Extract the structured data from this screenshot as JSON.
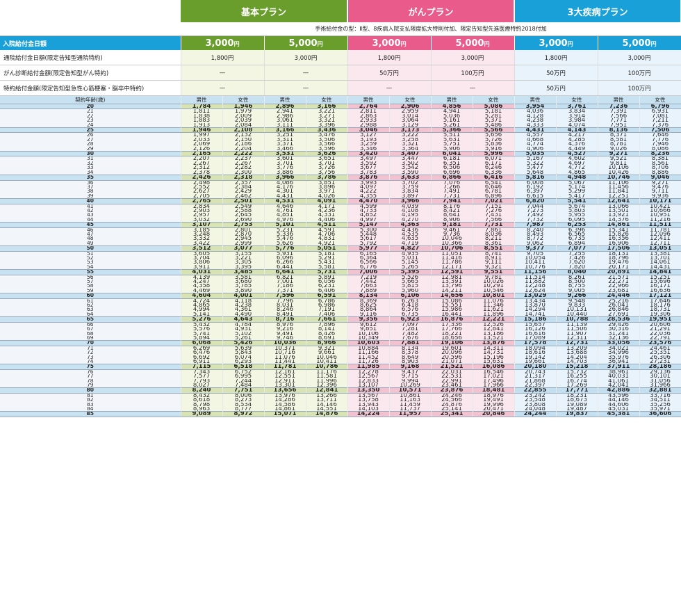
{
  "plans": [
    {
      "name": "基本プラン",
      "color": "#6a9e2c"
    },
    {
      "name": "がんプラン",
      "color": "#e85b8a"
    },
    {
      "name": "3大疾病プラン",
      "color": "#1aa0d8"
    }
  ],
  "note": "手術給付金の型：Ⅱ型、8疾病入院支払限度拡大特則付加、限定告知型先進医療特約2018付加",
  "rows": {
    "hospital_label": "入院給付金日額",
    "hospital_values": [
      "3,000",
      "5,000",
      "3,000",
      "5,000",
      "3,000",
      "5,000"
    ],
    "yen": "円",
    "outpatient_label": "通院給付金日額(限定告知型通院特約)",
    "outpatient_values": [
      "1,800円",
      "3,000円",
      "1,800円",
      "3,000円",
      "1,800円",
      "3,000円"
    ],
    "cancer_label": "がん診断給付金額(限定告知型がん特約)",
    "cancer_values": [
      "—",
      "—",
      "50万円",
      "100万円",
      "50万円",
      "100万円"
    ],
    "special_label": "特約給付金額(限定告知型急性心筋梗塞・脳卒中特約)",
    "special_values": [
      "—",
      "—",
      "—",
      "—",
      "50万円",
      "100万円"
    ]
  },
  "table": {
    "age_header": "契約年齢(歳)",
    "male": "男性",
    "female": "女性",
    "rows": [
      [
        "20",
        "1,784",
        "1,946",
        "2,896",
        "3,166",
        "2,764",
        "2,906",
        "4,856",
        "5,086",
        "3,954",
        "3,761",
        "7,236",
        "6,796"
      ],
      [
        "21",
        "1,811",
        "1,979",
        "2,941",
        "3,221",
        "2,811",
        "2,959",
        "4,941",
        "5,181",
        "4,036",
        "3,834",
        "7,391",
        "6,931"
      ],
      [
        "22",
        "1,838",
        "2,009",
        "2,986",
        "3,271",
        "2,863",
        "3,014",
        "5,036",
        "5,281",
        "4,128",
        "3,914",
        "7,566",
        "7,081"
      ],
      [
        "23",
        "1,883",
        "2,039",
        "3,061",
        "3,321",
        "2,933",
        "3,064",
        "5,161",
        "5,371",
        "4,238",
        "3,984",
        "7,771",
        "7,211"
      ],
      [
        "24",
        "1,913",
        "2,084",
        "3,111",
        "3,396",
        "2,988",
        "3,129",
        "5,261",
        "5,486",
        "4,333",
        "4,074",
        "7,951",
        "7,376"
      ],
      [
        "25",
        "1,946",
        "2,108",
        "3,166",
        "3,436",
        "3,046",
        "3,173",
        "5,366",
        "5,566",
        "4,431",
        "4,143",
        "8,136",
        "7,506"
      ],
      [
        "26",
        "1,997",
        "2,132",
        "3,251",
        "3,476",
        "3,127",
        "3,222",
        "5,511",
        "5,656",
        "4,557",
        "4,217",
        "8,371",
        "7,646"
      ],
      [
        "27",
        "2,033",
        "2,150",
        "3,311",
        "3,506",
        "3,193",
        "3,258",
        "5,631",
        "5,726",
        "4,668",
        "4,285",
        "8,581",
        "7,776"
      ],
      [
        "28",
        "2,069",
        "2,186",
        "3,371",
        "3,566",
        "3,259",
        "3,321",
        "5,751",
        "5,836",
        "4,774",
        "4,376",
        "8,781",
        "7,946"
      ],
      [
        "29",
        "2,126",
        "2,204",
        "3,466",
        "3,596",
        "3,346",
        "3,364",
        "5,906",
        "5,916",
        "4,906",
        "4,449",
        "9,026",
        "8,086"
      ],
      [
        "30",
        "2,165",
        "2,222",
        "3,531",
        "3,626",
        "3,420",
        "3,407",
        "6,041",
        "5,996",
        "5,035",
        "4,527",
        "9,271",
        "8,236"
      ],
      [
        "31",
        "2,207",
        "2,237",
        "3,601",
        "3,651",
        "3,497",
        "3,447",
        "6,181",
        "6,071",
        "5,167",
        "4,602",
        "9,521",
        "8,381"
      ],
      [
        "32",
        "2,267",
        "2,267",
        "3,701",
        "3,701",
        "3,592",
        "3,502",
        "6,351",
        "6,171",
        "5,322",
        "4,697",
        "9,811",
        "8,561"
      ],
      [
        "33",
        "2,312",
        "2,282",
        "3,776",
        "3,726",
        "3,677",
        "3,542",
        "6,506",
        "6,246",
        "5,477",
        "4,772",
        "10,106",
        "8,706"
      ],
      [
        "34",
        "2,378",
        "2,300",
        "3,886",
        "3,756",
        "3,783",
        "3,590",
        "6,696",
        "6,336",
        "5,648",
        "4,865",
        "10,426",
        "8,886"
      ],
      [
        "35",
        "2,426",
        "2,318",
        "3,966",
        "3,786",
        "3,876",
        "3,633",
        "6,866",
        "6,416",
        "5,816",
        "4,948",
        "10,746",
        "9,046"
      ],
      [
        "36",
        "2,498",
        "2,357",
        "4,086",
        "3,851",
        "3,993",
        "3,702",
        "7,076",
        "6,541",
        "6,008",
        "5,067",
        "11,106",
        "9,271"
      ],
      [
        "37",
        "2,552",
        "2,384",
        "4,176",
        "3,896",
        "4,097",
        "3,759",
        "7,266",
        "6,646",
        "6,192",
        "5,174",
        "11,456",
        "9,476"
      ],
      [
        "38",
        "2,627",
        "2,429",
        "4,301",
        "3,971",
        "4,222",
        "3,834",
        "7,491",
        "6,781",
        "6,397",
        "5,299",
        "11,841",
        "9,711"
      ],
      [
        "39",
        "2,705",
        "2,462",
        "4,431",
        "4,026",
        "4,355",
        "3,897",
        "7,731",
        "6,896",
        "6,615",
        "5,417",
        "12,251",
        "9,936"
      ],
      [
        "40",
        "2,765",
        "2,501",
        "4,531",
        "4,091",
        "4,470",
        "3,966",
        "7,941",
        "7,021",
        "6,820",
        "5,541",
        "12,641",
        "10,171"
      ],
      [
        "41",
        "2,834",
        "2,549",
        "4,646",
        "4,171",
        "4,599",
        "4,039",
        "8,176",
        "7,151",
        "7,044",
        "5,674",
        "13,066",
        "10,421"
      ],
      [
        "42",
        "2,903",
        "2,588",
        "4,761",
        "4,236",
        "4,733",
        "4,108",
        "8,421",
        "7,276",
        "7,273",
        "5,803",
        "13,501",
        "10,666"
      ],
      [
        "43",
        "2,957",
        "2,645",
        "4,851",
        "4,331",
        "4,852",
        "4,195",
        "8,641",
        "7,431",
        "7,492",
        "5,955",
        "13,921",
        "10,951"
      ],
      [
        "44",
        "3,032",
        "2,690",
        "4,976",
        "4,406",
        "4,997",
        "4,270",
        "8,906",
        "7,566",
        "7,732",
        "6,095",
        "14,376",
        "11,216"
      ],
      [
        "45",
        "3,107",
        "2,753",
        "5,101",
        "4,511",
        "5,147",
        "4,363",
        "9,181",
        "7,731",
        "7,987",
        "6,253",
        "14,861",
        "11,511"
      ],
      [
        "46",
        "3,185",
        "2,801",
        "5,231",
        "4,591",
        "5,300",
        "4,436",
        "9,461",
        "7,861",
        "8,240",
        "6,396",
        "15,341",
        "11,781"
      ],
      [
        "47",
        "3,248",
        "2,870",
        "5,336",
        "4,706",
        "5,448",
        "4,535",
        "9,736",
        "8,036",
        "8,493",
        "6,565",
        "15,826",
        "12,096"
      ],
      [
        "48",
        "3,332",
        "2,945",
        "5,476",
        "4,831",
        "5,617",
        "4,635",
        "10,046",
        "8,211",
        "8,772",
        "6,735",
        "16,356",
        "12,411"
      ],
      [
        "49",
        "3,422",
        "2,999",
        "5,626",
        "4,921",
        "5,792",
        "4,719",
        "10,366",
        "8,361",
        "9,062",
        "6,894",
        "16,906",
        "12,711"
      ],
      [
        "50",
        "3,512",
        "3,077",
        "5,776",
        "5,051",
        "5,977",
        "4,827",
        "10,706",
        "8,551",
        "9,377",
        "7,077",
        "17,506",
        "13,051"
      ],
      [
        "51",
        "3,605",
        "3,155",
        "5,931",
        "5,181",
        "6,165",
        "4,935",
        "11,051",
        "8,741",
        "9,705",
        "7,255",
        "18,131",
        "13,381"
      ],
      [
        "52",
        "3,704",
        "3,221",
        "6,096",
        "5,291",
        "6,364",
        "5,031",
        "11,416",
        "8,911",
        "10,054",
        "7,426",
        "18,796",
        "13,701"
      ],
      [
        "53",
        "3,806",
        "3,305",
        "6,266",
        "5,431",
        "6,566",
        "5,145",
        "11,786",
        "9,111",
        "10,411",
        "7,620",
        "19,476",
        "14,061"
      ],
      [
        "54",
        "3,911",
        "3,395",
        "6,441",
        "5,581",
        "6,776",
        "5,265",
        "12,171",
        "9,321",
        "10,776",
        "7,820",
        "20,171",
        "14,431"
      ],
      [
        "55",
        "4,031",
        "3,485",
        "6,641",
        "5,731",
        "7,006",
        "5,395",
        "12,591",
        "9,551",
        "11,156",
        "8,040",
        "20,891",
        "14,841"
      ],
      [
        "56",
        "4,139",
        "3,581",
        "6,821",
        "5,891",
        "7,219",
        "5,526",
        "12,981",
        "9,781",
        "11,514",
        "8,261",
        "21,571",
        "15,251"
      ],
      [
        "57",
        "4,247",
        "3,680",
        "7,001",
        "6,056",
        "7,442",
        "5,665",
        "13,391",
        "10,026",
        "11,882",
        "8,500",
        "22,271",
        "15,696"
      ],
      [
        "58",
        "4,358",
        "3,785",
        "7,186",
        "6,231",
        "7,663",
        "5,815",
        "13,796",
        "10,291",
        "12,248",
        "8,755",
        "22,966",
        "16,171"
      ],
      [
        "59",
        "4,469",
        "3,890",
        "7,371",
        "6,406",
        "7,889",
        "5,960",
        "14,211",
        "10,546",
        "12,624",
        "9,005",
        "23,681",
        "16,636"
      ],
      [
        "60",
        "4,604",
        "4,001",
        "7,596",
        "6,591",
        "8,134",
        "6,106",
        "14,656",
        "10,801",
        "13,029",
        "9,266",
        "24,446",
        "17,121"
      ],
      [
        "61",
        "4,724",
        "4,118",
        "7,796",
        "6,786",
        "8,369",
        "6,263",
        "15,086",
        "11,076",
        "13,434",
        "9,548",
        "25,216",
        "17,646"
      ],
      [
        "62",
        "4,865",
        "4,238",
        "8,031",
        "6,986",
        "8,625",
        "6,418",
        "15,551",
        "11,346",
        "13,870",
        "9,833",
        "26,041",
        "18,176"
      ],
      [
        "63",
        "4,994",
        "4,361",
        "8,246",
        "7,191",
        "8,864",
        "6,576",
        "15,986",
        "11,621",
        "14,294",
        "10,131",
        "26,846",
        "18,731"
      ],
      [
        "64",
        "5,141",
        "4,490",
        "8,491",
        "7,406",
        "9,116",
        "6,735",
        "16,441",
        "11,896",
        "14,741",
        "10,440",
        "27,691",
        "19,306"
      ],
      [
        "65",
        "5,276",
        "4,643",
        "8,716",
        "7,661",
        "9,356",
        "6,923",
        "16,876",
        "12,221",
        "15,186",
        "10,788",
        "28,536",
        "19,951"
      ],
      [
        "66",
        "5,432",
        "4,784",
        "8,976",
        "7,896",
        "9,612",
        "7,097",
        "17,336",
        "12,526",
        "15,657",
        "11,139",
        "29,426",
        "20,606"
      ],
      [
        "67",
        "5,576",
        "4,931",
        "9,216",
        "8,141",
        "9,851",
        "7,281",
        "17,766",
        "12,841",
        "16,126",
        "11,506",
        "30,316",
        "21,291"
      ],
      [
        "68",
        "5,741",
        "5,102",
        "9,491",
        "8,426",
        "10,106",
        "7,482",
        "18,221",
        "13,186",
        "16,616",
        "11,907",
        "31,241",
        "22,036"
      ],
      [
        "69",
        "5,894",
        "5,261",
        "9,746",
        "8,691",
        "10,349",
        "7,676",
        "18,656",
        "13,521",
        "17,089",
        "12,311",
        "32,136",
        "22,791"
      ],
      [
        "70",
        "6,068",
        "5,426",
        "10,036",
        "8,966",
        "10,603",
        "7,881",
        "19,106",
        "13,876",
        "17,578",
        "12,731",
        "33,056",
        "23,576"
      ],
      [
        "71",
        "6,269",
        "5,639",
        "10,371",
        "9,321",
        "10,884",
        "8,134",
        "19,601",
        "14,311",
        "18,094",
        "13,209",
        "34,021",
        "24,461"
      ],
      [
        "72",
        "6,476",
        "5,843",
        "10,716",
        "9,661",
        "11,166",
        "8,378",
        "20,096",
        "14,731",
        "18,616",
        "13,688",
        "34,996",
        "25,351"
      ],
      [
        "73",
        "6,692",
        "6,074",
        "11,076",
        "10,046",
        "11,452",
        "8,649",
        "20,596",
        "15,196",
        "19,142",
        "14,204",
        "35,976",
        "26,306"
      ],
      [
        "74",
        "6,911",
        "6,293",
        "11,441",
        "10,411",
        "11,726",
        "8,903",
        "21,071",
        "15,631",
        "19,661",
        "14,703",
        "36,941",
        "27,231"
      ],
      [
        "75",
        "7,115",
        "6,518",
        "11,781",
        "10,786",
        "11,985",
        "9,168",
        "21,521",
        "16,086",
        "20,180",
        "15,218",
        "37,911",
        "28,186"
      ],
      [
        "76",
        "7,343",
        "6,752",
        "12,161",
        "11,176",
        "12,278",
        "9,437",
        "22,031",
        "16,546",
        "20,743",
        "15,732",
        "38,961",
        "29,136"
      ],
      [
        "77",
        "7,577",
        "6,995",
        "12,551",
        "11,581",
        "12,567",
        "9,715",
        "22,531",
        "17,021",
        "21,317",
        "16,255",
        "40,031",
        "30,101"
      ],
      [
        "78",
        "7,793",
        "7,244",
        "12,911",
        "11,996",
        "12,833",
        "9,994",
        "22,991",
        "17,496",
        "21,868",
        "16,774",
        "41,061",
        "31,056"
      ],
      [
        "79",
        "8,027",
        "7,484",
        "13,301",
        "12,396",
        "13,107",
        "10,269",
        "23,461",
        "17,966",
        "22,397",
        "17,269",
        "42,041",
        "31,966"
      ],
      [
        "80",
        "8,240",
        "7,751",
        "13,656",
        "12,841",
        "13,350",
        "10,571",
        "23,876",
        "18,481",
        "22,855",
        "17,771",
        "42,886",
        "32,881"
      ],
      [
        "81",
        "8,432",
        "8,006",
        "13,976",
        "13,266",
        "13,567",
        "10,861",
        "24,246",
        "18,976",
        "23,242",
        "18,231",
        "43,596",
        "33,716"
      ],
      [
        "82",
        "8,618",
        "8,273",
        "14,286",
        "13,711",
        "13,758",
        "11,163",
        "24,566",
        "19,491",
        "23,548",
        "18,673",
        "44,146",
        "34,511"
      ],
      [
        "83",
        "8,798",
        "8,534",
        "14,586",
        "14,146",
        "13,943",
        "11,459",
        "24,876",
        "19,996",
        "23,808",
        "19,089",
        "44,606",
        "35,256"
      ],
      [
        "84",
        "8,963",
        "8,777",
        "14,861",
        "14,551",
        "14,103",
        "11,737",
        "25,141",
        "20,471",
        "24,048",
        "19,487",
        "45,031",
        "35,971"
      ],
      [
        "85",
        "9,089",
        "8,972",
        "15,071",
        "14,876",
        "14,224",
        "11,957",
        "25,341",
        "20,846",
        "24,244",
        "19,837",
        "45,381",
        "36,606"
      ]
    ]
  }
}
